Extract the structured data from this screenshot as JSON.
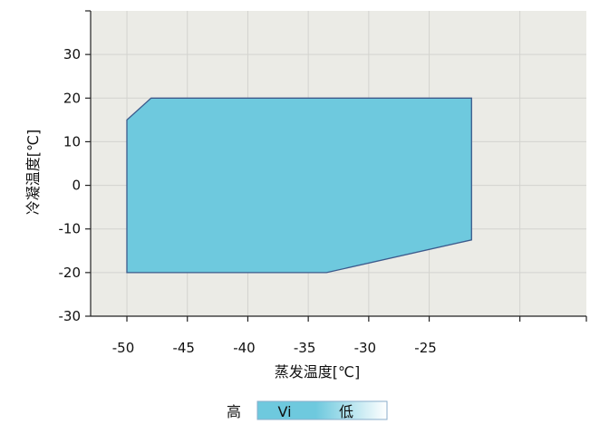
{
  "chart_data": {
    "type": "area",
    "x": {
      "label": "蒸发温度[℃]",
      "ticks": [
        -50,
        -45,
        -40,
        -35,
        -30,
        -25
      ],
      "tick_labels": [
        "-50",
        "-45",
        "-40",
        "-35",
        "-30",
        "-25"
      ],
      "range": [
        -53,
        -12
      ]
    },
    "y": {
      "label": "冷凝温度[℃]",
      "ticks": [
        -30,
        -20,
        -10,
        0,
        10,
        20,
        30
      ],
      "tick_labels": [
        "-30",
        "-20",
        "-10",
        "0",
        "10",
        "20",
        "30"
      ],
      "range": [
        -30,
        40
      ]
    },
    "grid": true,
    "envelope": {
      "points": [
        [
          -50,
          15
        ],
        [
          -48,
          20
        ],
        [
          -21.5,
          20
        ],
        [
          -21.5,
          -12.5
        ],
        [
          -33.5,
          -20
        ],
        [
          -50,
          -20
        ]
      ],
      "fill_color": "#6ec9de",
      "stroke_color": "#3c5a8c"
    },
    "plot_background": "#ebebe6",
    "grid_color": "#d3d3cf",
    "legend": {
      "high_label": "高",
      "series_label": "Vi",
      "low_label": "低",
      "gradient_from": "#6ec9de",
      "gradient_to": "#ffffff"
    }
  }
}
